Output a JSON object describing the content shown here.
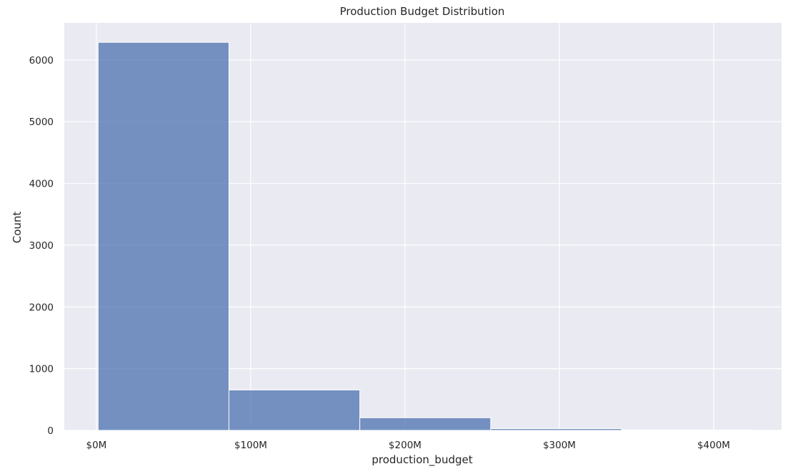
{
  "chart_data": {
    "type": "bar",
    "title": "Production Budget Distribution",
    "xlabel": "production_budget",
    "ylabel": "Count",
    "x_tick_values": [
      0,
      100,
      200,
      300,
      400
    ],
    "x_tick_labels": [
      "$0M",
      "$100M",
      "$200M",
      "$300M",
      "$400M"
    ],
    "y_tick_values": [
      0,
      1000,
      2000,
      3000,
      4000,
      5000,
      6000
    ],
    "y_tick_labels": [
      "0",
      "1000",
      "2000",
      "3000",
      "4000",
      "5000",
      "6000"
    ],
    "xlim": [
      -20.8,
      444
    ],
    "ylim": [
      0,
      6600
    ],
    "bin_edges": [
      1.1,
      85.9,
      170.7,
      255.5,
      340.3,
      425.0
    ],
    "counts": [
      6285,
      655,
      205,
      28,
      7
    ],
    "grid": true,
    "bar_color": "#4c72b0",
    "background_color": "#eaeaf2",
    "grid_color": "#ffffff"
  }
}
